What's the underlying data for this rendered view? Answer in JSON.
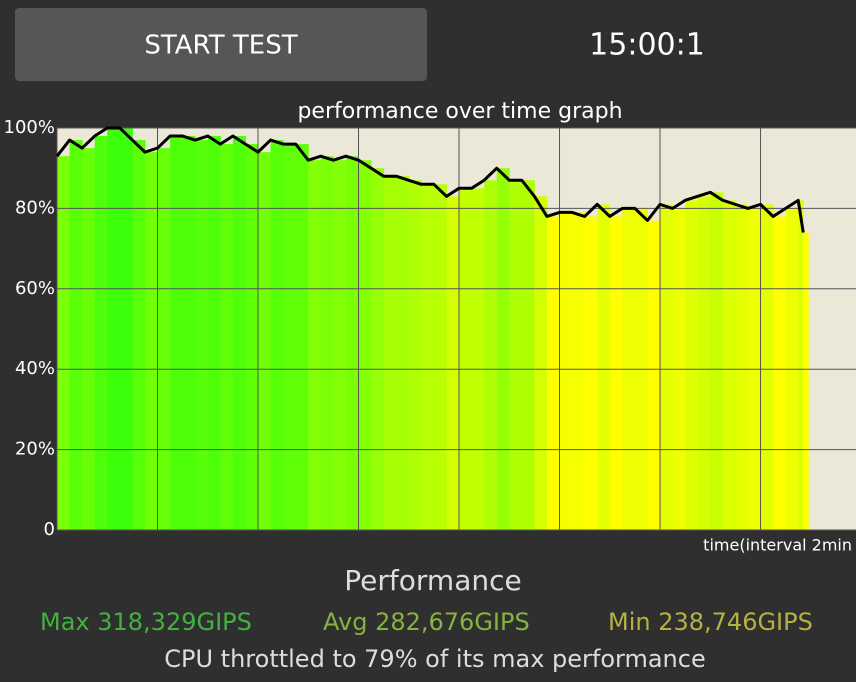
{
  "button": {
    "label": "START TEST"
  },
  "timer": "15:00:1",
  "chart_data": {
    "type": "line",
    "title": "performance over time graph",
    "xlabel": "time(interval 2min",
    "x": [
      0,
      0.25,
      0.5,
      0.75,
      1,
      1.25,
      1.5,
      1.75,
      2,
      2.25,
      2.5,
      2.75,
      3,
      3.25,
      3.5,
      3.75,
      4,
      4.25,
      4.5,
      4.75,
      5,
      5.25,
      5.5,
      5.75,
      6,
      6.25,
      6.5,
      6.75,
      7,
      7.25,
      7.5,
      7.75,
      8,
      8.25,
      8.5,
      8.75,
      9,
      9.25,
      9.5,
      9.75,
      10,
      10.25,
      10.5,
      10.75,
      11,
      11.25,
      11.5,
      11.75,
      12,
      12.25,
      12.5,
      12.75,
      13,
      13.25,
      13.5,
      13.75,
      14,
      14.25,
      14.5,
      14.75,
      14.85
    ],
    "series": [
      {
        "name": "performance",
        "color": "#000000",
        "values": [
          93,
          97,
          95,
          98,
          100,
          100,
          97,
          94,
          95,
          98,
          98,
          97,
          98,
          96,
          98,
          96,
          94,
          97,
          96,
          96,
          92,
          93,
          92,
          93,
          92,
          90,
          88,
          88,
          87,
          86,
          86,
          83,
          85,
          85,
          87,
          90,
          87,
          87,
          83,
          78,
          79,
          79,
          78,
          81,
          78,
          80,
          80,
          77,
          81,
          80,
          82,
          83,
          84,
          82,
          81,
          80,
          81,
          78,
          80,
          82,
          74
        ]
      }
    ],
    "xlim": [
      0,
      15.9
    ],
    "xticks": [
      0,
      2,
      4,
      6,
      8,
      10,
      12,
      14
    ],
    "ylim": [
      0,
      100
    ],
    "yticks": [
      {
        "value": 100,
        "label": "100%"
      },
      {
        "value": 80,
        "label": "80%"
      },
      {
        "value": 60,
        "label": "60%"
      },
      {
        "value": 40,
        "label": "40%"
      },
      {
        "value": 20,
        "label": "20%"
      },
      0
    ],
    "grid": true
  },
  "summary": {
    "heading": "Performance",
    "max": "Max 318,329GIPS",
    "avg": "Avg 282,676GIPS",
    "min": "Min 238,746GIPS",
    "footer": "CPU throttled to 79% of its max performance"
  }
}
